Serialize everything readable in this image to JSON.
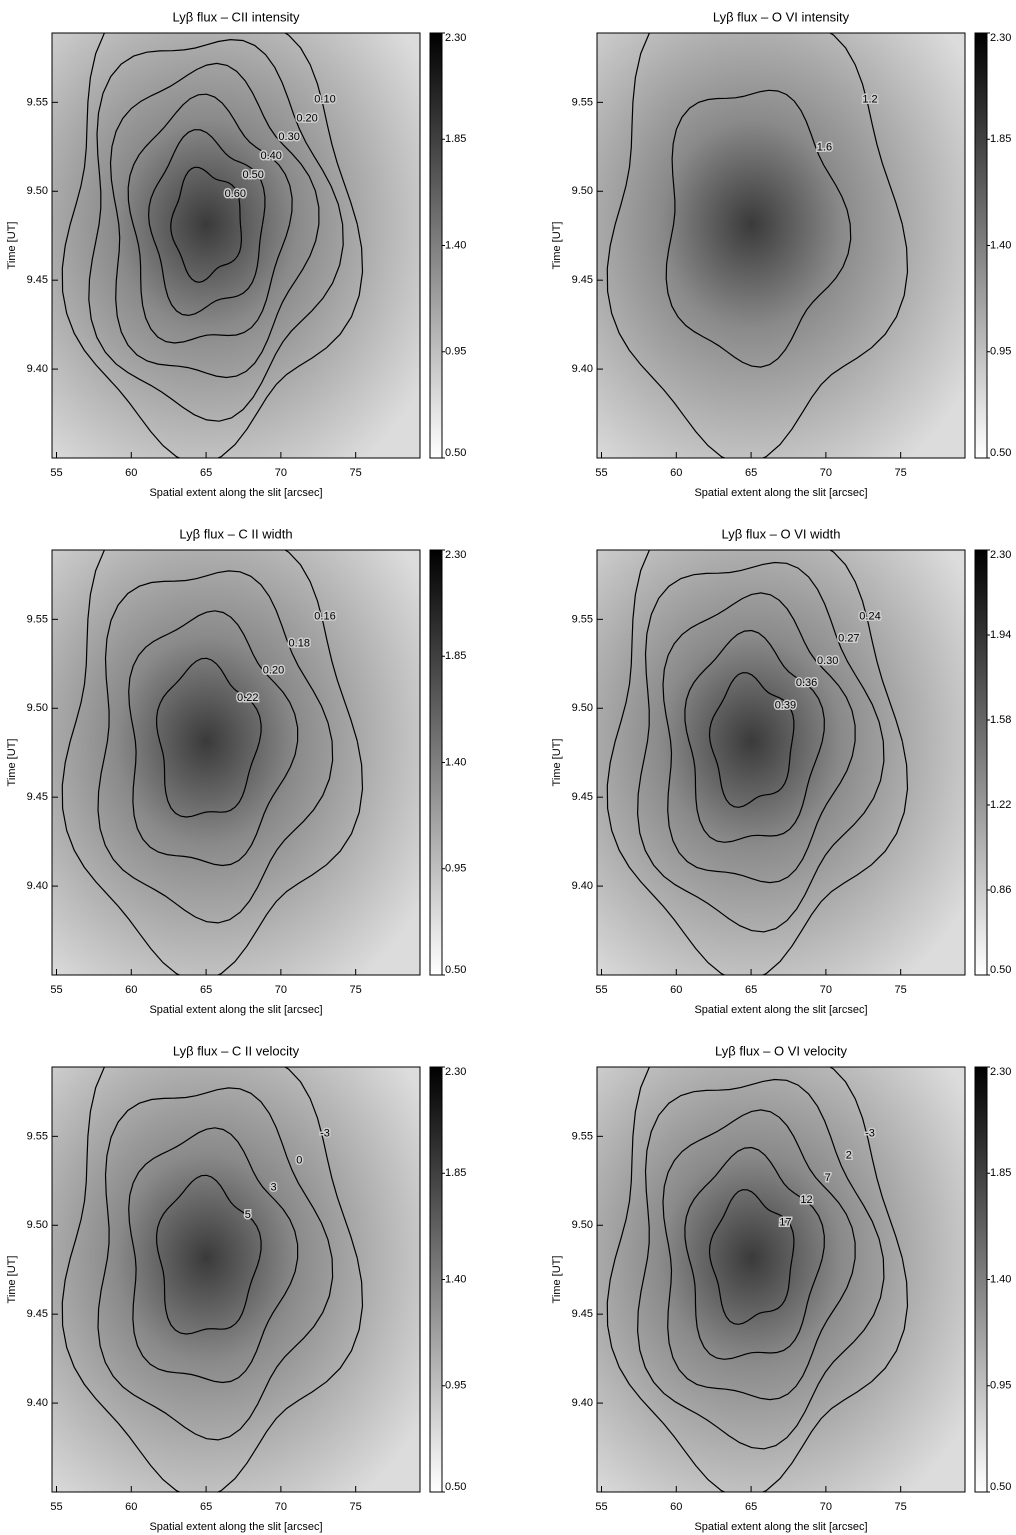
{
  "chart_data": [
    {
      "type": "contour",
      "title": "Lyβ flux – CII intensity",
      "xlabel": "Spatial extent along the slit [arcsec]",
      "ylabel": "Time [UT]",
      "xlim": [
        54.7,
        79.3
      ],
      "xticks": [
        55,
        60,
        65,
        70,
        75
      ],
      "ylim": [
        9.35,
        9.589
      ],
      "yticks": [
        {
          "value": 9.4,
          "label": "9.40"
        },
        9.45,
        {
          "value": 9.5,
          "label": "9.50"
        },
        9.55
      ],
      "colorbar_lim": [
        0.5,
        2.3
      ],
      "colorbar_ticks": [
        {
          "value": 0.5,
          "label": "0.50"
        },
        0.95,
        {
          "value": 1.4,
          "label": "1.40"
        },
        1.85,
        {
          "value": 2.3,
          "label": "2.30"
        }
      ],
      "contour_levels": [
        {
          "value": 0.1,
          "label": "0.10"
        },
        {
          "value": 0.2,
          "label": "0.20"
        },
        {
          "value": 0.3,
          "label": "0.30"
        },
        {
          "value": 0.4,
          "label": "0.40"
        },
        {
          "value": 0.5,
          "label": "0.50"
        },
        {
          "value": 0.6,
          "label": "0.60"
        }
      ]
    },
    {
      "type": "contour",
      "title": "Lyβ flux – O VI intensity",
      "xlabel": "Spatial extent along the slit [arcsec]",
      "ylabel": "Time [UT]",
      "xlim": [
        54.7,
        79.3
      ],
      "xticks": [
        55,
        60,
        65,
        70,
        75
      ],
      "ylim": [
        9.35,
        9.589
      ],
      "yticks": [
        {
          "value": 9.4,
          "label": "9.40"
        },
        9.45,
        {
          "value": 9.5,
          "label": "9.50"
        },
        9.55
      ],
      "colorbar_lim": [
        0.5,
        2.3
      ],
      "colorbar_ticks": [
        {
          "value": 0.5,
          "label": "0.50"
        },
        0.95,
        {
          "value": 1.4,
          "label": "1.40"
        },
        1.85,
        {
          "value": 2.3,
          "label": "2.30"
        }
      ],
      "contour_levels": [
        1.2,
        1.6
      ]
    },
    {
      "type": "contour",
      "title": "Lyβ flux – C II width",
      "xlabel": "Spatial extent along the slit [arcsec]",
      "ylabel": "Time [UT]",
      "xlim": [
        54.7,
        79.3
      ],
      "xticks": [
        55,
        60,
        65,
        70,
        75
      ],
      "ylim": [
        9.35,
        9.589
      ],
      "yticks": [
        {
          "value": 9.4,
          "label": "9.40"
        },
        9.45,
        {
          "value": 9.5,
          "label": "9.50"
        },
        9.55
      ],
      "colorbar_lim": [
        0.5,
        2.3
      ],
      "colorbar_ticks": [
        {
          "value": 0.5,
          "label": "0.50"
        },
        0.95,
        {
          "value": 1.4,
          "label": "1.40"
        },
        1.85,
        {
          "value": 2.3,
          "label": "2.30"
        }
      ],
      "contour_levels": [
        0.16,
        0.18,
        {
          "value": 0.2,
          "label": "0.20"
        },
        0.22
      ]
    },
    {
      "type": "contour",
      "title": "Lyβ flux – O VI width",
      "xlabel": "Spatial extent along the slit [arcsec]",
      "ylabel": "Time [UT]",
      "xlim": [
        54.7,
        79.3
      ],
      "xticks": [
        55,
        60,
        65,
        70,
        75
      ],
      "ylim": [
        9.35,
        9.589
      ],
      "yticks": [
        {
          "value": 9.4,
          "label": "9.40"
        },
        9.45,
        {
          "value": 9.5,
          "label": "9.50"
        },
        9.55
      ],
      "colorbar_lim": [
        0.5,
        2.3
      ],
      "colorbar_ticks": [
        {
          "value": 0.5,
          "label": "0.50"
        },
        0.86,
        1.22,
        1.58,
        1.94,
        {
          "value": 2.3,
          "label": "2.30"
        }
      ],
      "contour_levels": [
        0.24,
        0.27,
        {
          "value": 0.3,
          "label": "0.30"
        },
        0.36,
        0.39
      ]
    },
    {
      "type": "contour",
      "title": "Lyβ flux – C II velocity",
      "xlabel": "Spatial extent along the slit [arcsec]",
      "ylabel": "Time [UT]",
      "xlim": [
        54.7,
        79.3
      ],
      "xticks": [
        55,
        60,
        65,
        70,
        75
      ],
      "ylim": [
        9.35,
        9.589
      ],
      "yticks": [
        {
          "value": 9.4,
          "label": "9.40"
        },
        9.45,
        {
          "value": 9.5,
          "label": "9.50"
        },
        9.55
      ],
      "colorbar_lim": [
        0.5,
        2.3
      ],
      "colorbar_ticks": [
        {
          "value": 0.5,
          "label": "0.50"
        },
        0.95,
        {
          "value": 1.4,
          "label": "1.40"
        },
        1.85,
        {
          "value": 2.3,
          "label": "2.30"
        }
      ],
      "contour_levels": [
        -3,
        0,
        3,
        5
      ]
    },
    {
      "type": "contour",
      "title": "Lyβ flux – O VI velocity",
      "xlabel": "Spatial extent along the slit [arcsec]",
      "ylabel": "Time [UT]",
      "xlim": [
        54.7,
        79.3
      ],
      "xticks": [
        55,
        60,
        65,
        70,
        75
      ],
      "ylim": [
        9.35,
        9.589
      ],
      "yticks": [
        {
          "value": 9.4,
          "label": "9.40"
        },
        9.45,
        {
          "value": 9.5,
          "label": "9.50"
        },
        9.55
      ],
      "colorbar_lim": [
        0.5,
        2.3
      ],
      "colorbar_ticks": [
        {
          "value": 0.5,
          "label": "0.50"
        },
        0.95,
        {
          "value": 1.4,
          "label": "1.40"
        },
        1.85,
        {
          "value": 2.3,
          "label": "2.30"
        }
      ],
      "contour_levels": [
        -3,
        2,
        7,
        12,
        17
      ]
    }
  ]
}
